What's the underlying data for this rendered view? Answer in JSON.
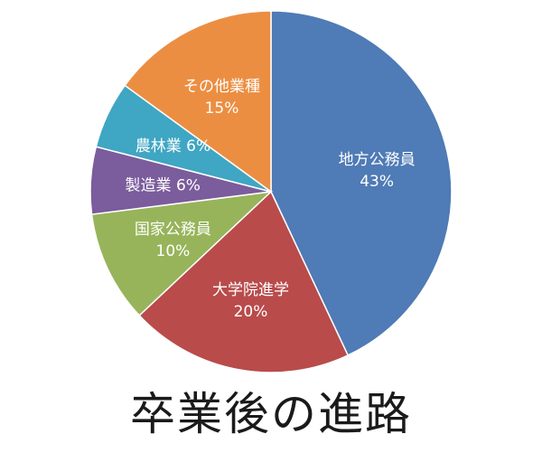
{
  "chart_data": {
    "type": "pie",
    "title": "卒業後の進路",
    "start_angle_deg": 0,
    "direction": "clockwise",
    "slices": [
      {
        "name": "地方公務員",
        "value": 43,
        "label": "43%",
        "color": "#4F7BB6"
      },
      {
        "name": "大学院進学",
        "value": 20,
        "label": "20%",
        "color": "#B94B4B"
      },
      {
        "name": "国家公務員",
        "value": 10,
        "label": "10%",
        "color": "#97B45A"
      },
      {
        "name": "製造業",
        "value": 6,
        "label": "6%",
        "color": "#7B5C9C"
      },
      {
        "name": "農林業",
        "value": 6,
        "label": "6%",
        "color": "#3FA6C3"
      },
      {
        "name": "その他業種",
        "value": 15,
        "label": "15%",
        "color": "#EC8E42"
      }
    ]
  }
}
